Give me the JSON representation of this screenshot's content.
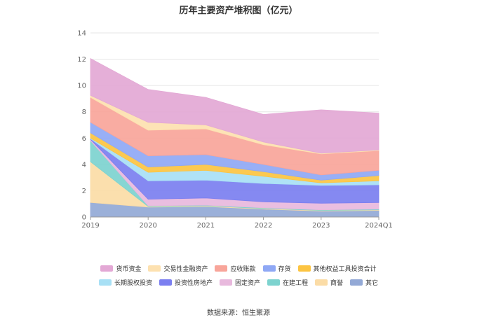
{
  "chart_data": {
    "type": "area",
    "stacked": true,
    "title": "历年主要资产堆积图（亿元）",
    "categories": [
      "2019",
      "2020",
      "2021",
      "2022",
      "2023",
      "2024Q1"
    ],
    "ylim": [
      0,
      14
    ],
    "yticks": [
      0,
      2,
      4,
      6,
      8,
      10,
      12,
      14
    ],
    "grid": true,
    "legend_position": "bottom",
    "series": [
      {
        "name": "其它",
        "color": "#93a9d6",
        "values": [
          1.1,
          0.75,
          0.8,
          0.6,
          0.45,
          0.5
        ]
      },
      {
        "name": "商誉",
        "color": "#fbdca6",
        "values": [
          3.1,
          0.05,
          0.05,
          0.05,
          0.05,
          0.05
        ]
      },
      {
        "name": "在建工程",
        "color": "#7dd3cf",
        "values": [
          1.6,
          0.05,
          0.05,
          0.05,
          0.05,
          0.05
        ]
      },
      {
        "name": "固定资产",
        "color": "#e8b9dd",
        "values": [
          0.1,
          0.5,
          0.55,
          0.45,
          0.5,
          0.5
        ]
      },
      {
        "name": "投资性房地产",
        "color": "#7b7ff0",
        "values": [
          0.05,
          1.4,
          1.35,
          1.4,
          1.35,
          1.35
        ]
      },
      {
        "name": "长期股权投资",
        "color": "#a8e0f5",
        "values": [
          0.05,
          0.65,
          0.75,
          0.55,
          0.2,
          0.3
        ]
      },
      {
        "name": "其他权益工具投资合计",
        "color": "#fcc442",
        "values": [
          0.4,
          0.4,
          0.45,
          0.35,
          0.2,
          0.4
        ]
      },
      {
        "name": "存货",
        "color": "#8fa8f5",
        "values": [
          0.8,
          0.85,
          0.75,
          0.55,
          0.4,
          0.4
        ]
      },
      {
        "name": "应收账款",
        "color": "#f8a59a",
        "values": [
          1.9,
          1.95,
          1.95,
          1.5,
          1.6,
          1.5
        ]
      },
      {
        "name": "交易性金融资产",
        "color": "#fde1b0",
        "values": [
          0.15,
          0.6,
          0.3,
          0.2,
          0.05,
          0.05
        ]
      },
      {
        "name": "货币资金",
        "color": "#e3a8d5",
        "values": [
          2.8,
          2.5,
          2.1,
          2.1,
          3.3,
          2.8
        ]
      }
    ],
    "legend_order": [
      "货币资金",
      "交易性金融资产",
      "应收账款",
      "存货",
      "其他权益工具投资合计",
      "长期股权投资",
      "投资性房地产",
      "固定资产",
      "在建工程",
      "商誉",
      "其它"
    ]
  },
  "source_text": "数据来源：恒生聚源"
}
